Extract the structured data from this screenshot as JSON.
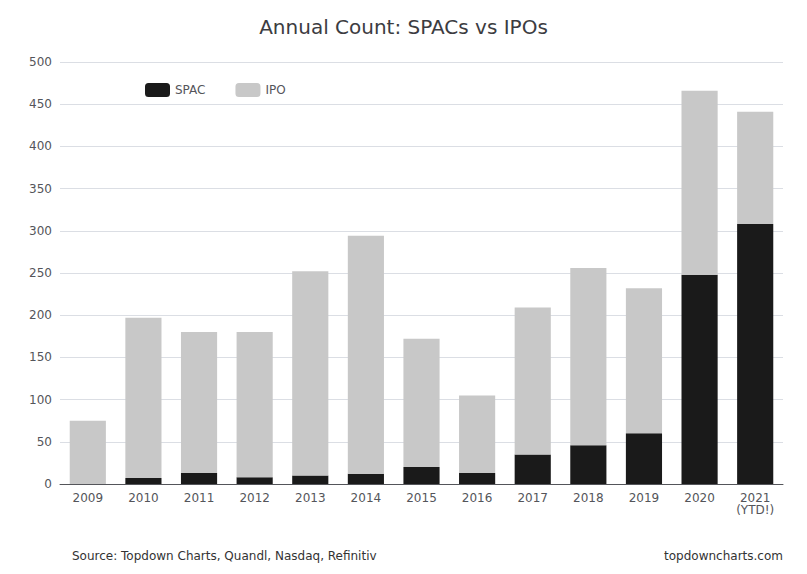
{
  "chart_data": {
    "type": "bar",
    "title": "Annual Count: SPACs vs IPOs",
    "categories": [
      "2009",
      "2010",
      "2011",
      "2012",
      "2013",
      "2014",
      "2015",
      "2016",
      "2017",
      "2018",
      "2019",
      "2020",
      "2021\n(YTD!)"
    ],
    "series": [
      {
        "name": "SPAC",
        "color": "#1a1a1a",
        "values": [
          0,
          7,
          13,
          8,
          10,
          12,
          20,
          13,
          35,
          46,
          60,
          248,
          308
        ]
      },
      {
        "name": "IPO",
        "color": "#c8c8c8",
        "values": [
          75,
          190,
          167,
          172,
          242,
          282,
          152,
          92,
          174,
          210,
          172,
          218,
          133
        ]
      }
    ],
    "stacked": true,
    "ylim": [
      0,
      500
    ],
    "yticks": [
      0,
      50,
      100,
      150,
      200,
      250,
      300,
      350,
      400,
      450,
      500
    ],
    "grid": true,
    "legend": "upper left",
    "annotations": [
      "Source: Topdown Charts, Quandl, Nasdaq, Refinitiv",
      "topdowncharts.com"
    ]
  }
}
